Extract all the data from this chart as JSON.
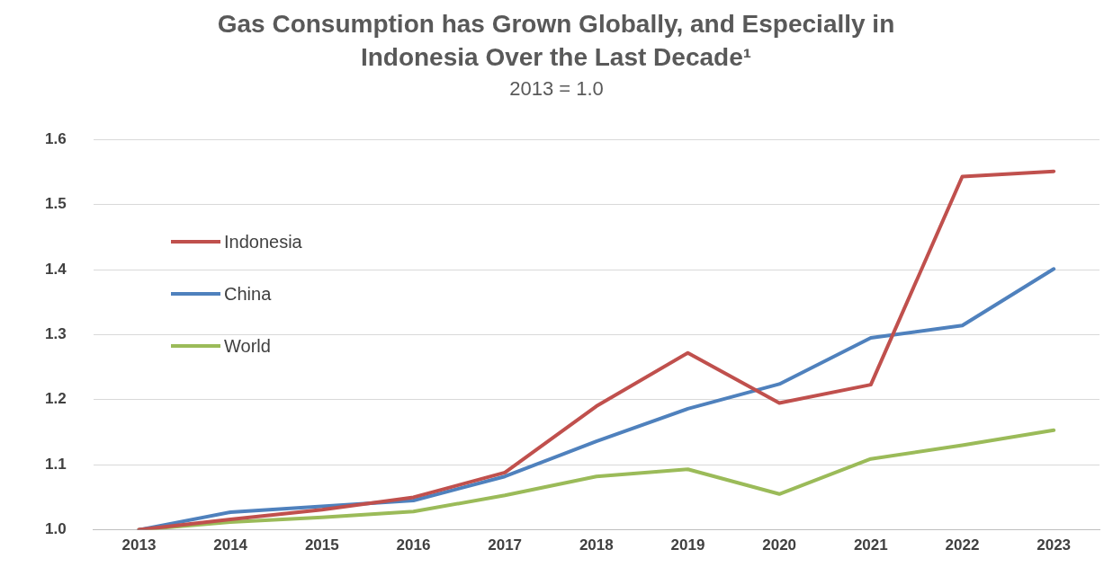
{
  "chart_data": {
    "type": "line",
    "title": "Gas Consumption has Grown Globally, and Especially in Indonesia Over the Last Decade¹",
    "subtitle": "2013 = 1.0",
    "categories": [
      "2013",
      "2014",
      "2015",
      "2016",
      "2017",
      "2018",
      "2019",
      "2020",
      "2021",
      "2022",
      "2023"
    ],
    "series": [
      {
        "name": "Indonesia",
        "color": "#c0504d",
        "values": [
          1.0,
          1.016,
          1.031,
          1.05,
          1.088,
          1.19,
          1.272,
          1.195,
          1.223,
          1.543,
          1.551
        ]
      },
      {
        "name": "China",
        "color": "#4f81bd",
        "values": [
          1.0,
          1.027,
          1.036,
          1.045,
          1.082,
          1.136,
          1.186,
          1.224,
          1.295,
          1.314,
          1.401
        ]
      },
      {
        "name": "World",
        "color": "#9bbb59",
        "values": [
          1.0,
          1.012,
          1.019,
          1.028,
          1.053,
          1.082,
          1.093,
          1.055,
          1.109,
          1.13,
          1.153
        ]
      }
    ],
    "ylim": [
      1.0,
      1.6
    ],
    "yticks": [
      {
        "value": 1.0,
        "label": "1.0"
      },
      {
        "value": 1.1,
        "label": "1.1"
      },
      {
        "value": 1.2,
        "label": "1.2"
      },
      {
        "value": 1.3,
        "label": "1.3"
      },
      {
        "value": 1.4,
        "label": "1.4"
      },
      {
        "value": 1.5,
        "label": "1.5"
      },
      {
        "value": 1.6,
        "label": "1.6"
      }
    ],
    "grid": "y",
    "legend": "top left",
    "marker": "none",
    "line_style": "solid"
  }
}
